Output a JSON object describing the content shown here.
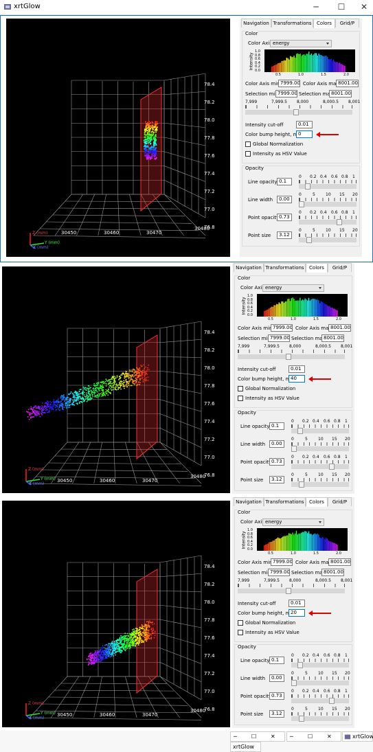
{
  "window": {
    "title": "xrtGlow"
  },
  "tabs": [
    "Navigation",
    "Transformations",
    "Colors",
    "Grid/P"
  ],
  "tabs_short": [
    "Navigation",
    "Transformations",
    "Colors",
    "Grid/P"
  ],
  "color": {
    "group_label": "Color",
    "axis_label": "Color Axis:",
    "axis_value": "energy",
    "hist_ylabel": "Intensity",
    "hist_yticks": [
      "1.0",
      "0.8",
      "0.6",
      "0.4",
      "0.2",
      "0.0"
    ],
    "hist_xticks": [
      "0.5",
      "1.0",
      "1.5",
      "2.0"
    ],
    "axis_min_label": "Color Axis min",
    "axis_min": "7999.000",
    "axis_max_label": "Color Axis max",
    "axis_max": "8001.000",
    "sel_min_label": "Selection min",
    "sel_min": "7999.000",
    "sel_max_label": "Selection max",
    "sel_max": "8001.000",
    "range_ticks": [
      "7,999",
      "7,999.5",
      "8,000",
      "8,000.5",
      "8,001"
    ],
    "cutoff_label": "Intensity cut-off",
    "cutoff": "0.01",
    "bump_label": "Color bump height, mm",
    "global_norm": "Global Normalization",
    "hsv": "Intensity as HSV Value"
  },
  "opacity": {
    "group_label": "Opacity",
    "line_opacity_label": "Line opacity",
    "line_opacity": "0.1",
    "line_width_label": "Line width",
    "line_width": "0.00",
    "point_opacity_label": "Point opacity",
    "point_opacity": "0.73",
    "point_size_label": "Point size",
    "point_size": "3.12",
    "ticks_01": [
      "0",
      "0.2",
      "0.4",
      "0.6",
      "0.8",
      "1"
    ],
    "ticks_20": [
      "0",
      "5",
      "10",
      "15",
      "20"
    ]
  },
  "panels": [
    {
      "bump": "0"
    },
    {
      "bump": "40"
    },
    {
      "bump": "20"
    }
  ],
  "plot": {
    "z_ticks": [
      "78.4",
      "78.2",
      "78.0",
      "77.8",
      "77.6",
      "77.4",
      "77.2",
      "77.0",
      "76.8"
    ],
    "x_ticks": [
      "30450",
      "30460",
      "30470",
      "30480"
    ],
    "axis_z": "Z (mm)",
    "axis_y": "Y (mm)",
    "axis_x": "X (mm)"
  },
  "taskbar": {
    "label": "xrtGlow"
  },
  "icons": [
    "app-icon",
    "minimize-icon",
    "maximize-icon",
    "close-icon"
  ],
  "colors": {
    "accent": "#0078d7",
    "frame": "#1e6bb5",
    "arrow": "#d00000"
  }
}
